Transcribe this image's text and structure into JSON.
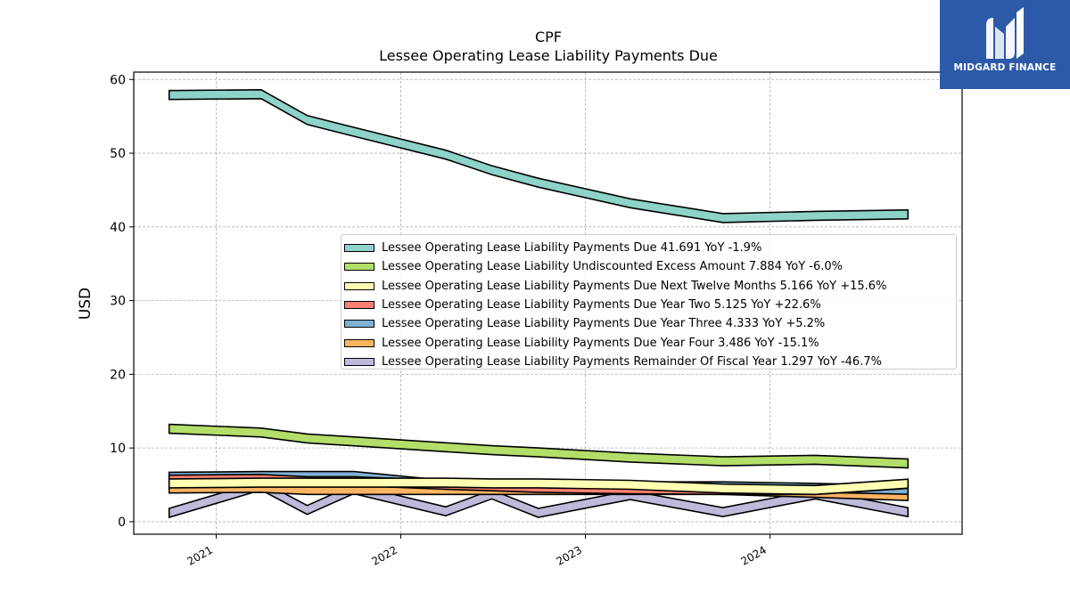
{
  "logo": {
    "text": "MIDGARD FINANCE",
    "background": "#2c5aa8"
  },
  "chart_data": {
    "type": "area",
    "title": "CPF",
    "subtitle": "Lessee Operating Lease Liability Payments Due",
    "xlabel": "",
    "ylabel": "USD",
    "x_ticks": [
      "2021",
      "2022",
      "2023",
      "2024"
    ],
    "y_ticks": [
      0,
      10,
      20,
      30,
      40,
      50,
      60
    ],
    "ylim": [
      -1.7,
      61
    ],
    "xlim": [
      "2020-07-22",
      "2025-01-15"
    ],
    "grid": true,
    "legend_position": "center-right",
    "x": [
      "2020-09-30",
      "2021-03-31",
      "2021-06-30",
      "2021-09-30",
      "2022-03-31",
      "2022-06-30",
      "2022-09-30",
      "2023-03-31",
      "2023-09-30",
      "2024-03-31",
      "2024-09-30"
    ],
    "series": [
      {
        "name": "Lessee Operating Lease Liability Payments Due",
        "legend": "Lessee Operating Lease Liability Payments Due  41.691 YoY -1.9%",
        "color": "#8dd3c7",
        "values": [
          57.9,
          58.0,
          54.5,
          52.9,
          49.8,
          47.7,
          46.0,
          43.2,
          41.2,
          41.5,
          41.7
        ]
      },
      {
        "name": "Lessee Operating Lease Liability Undiscounted Excess Amount",
        "legend": "Lessee Operating Lease Liability Undiscounted Excess Amount  7.884 YoY -6.0%",
        "color": "#b3de69",
        "values": [
          12.6,
          12.1,
          11.3,
          10.9,
          10.1,
          9.7,
          9.4,
          8.7,
          8.2,
          8.4,
          7.9
        ]
      },
      {
        "name": "Lessee Operating Lease Liability Payments Due Next Twelve Months",
        "legend": "Lessee Operating Lease Liability Payments Due Next Twelve Months  5.166 YoY +15.6%",
        "color": "#ffffb3",
        "values": [
          5.2,
          5.3,
          5.3,
          5.3,
          5.3,
          5.2,
          5.2,
          5.0,
          4.5,
          4.3,
          5.166
        ]
      },
      {
        "name": "Lessee Operating Lease Liability Payments Due Year Two",
        "legend": "Lessee Operating Lease Liability Payments Due Year Two  5.125 YoY +22.6%",
        "color": "#fb8072",
        "values": [
          5.7,
          5.8,
          5.5,
          5.5,
          5.0,
          4.8,
          4.6,
          4.4,
          4.3,
          4.3,
          5.125
        ]
      },
      {
        "name": "Lessee Operating Lease Liability Payments Due Year Three",
        "legend": "Lessee Operating Lease Liability Payments Due Year Three  4.333 YoY +5.2%",
        "color": "#80b1d3",
        "values": [
          6.1,
          6.2,
          6.2,
          6.2,
          5.0,
          5.0,
          5.0,
          4.8,
          4.8,
          4.6,
          4.333
        ]
      },
      {
        "name": "Lessee Operating Lease Liability Payments Due Year Four",
        "legend": "Lessee Operating Lease Liability Payments Due Year Four  3.486 YoY -15.1%",
        "color": "#fdb462",
        "values": [
          4.5,
          4.6,
          4.3,
          4.3,
          4.3,
          4.3,
          4.3,
          4.3,
          4.3,
          3.9,
          3.486
        ]
      },
      {
        "name": "Lessee Operating Lease Liability Payments Remainder Of Fiscal Year",
        "legend": "Lessee Operating Lease Liability Payments Remainder Of Fiscal Year  1.297 YoY -46.7%",
        "color": "#bebada",
        "values": [
          1.2,
          4.9,
          1.6,
          4.4,
          1.4,
          3.7,
          1.2,
          3.6,
          1.297,
          3.7,
          1.3
        ]
      }
    ]
  }
}
